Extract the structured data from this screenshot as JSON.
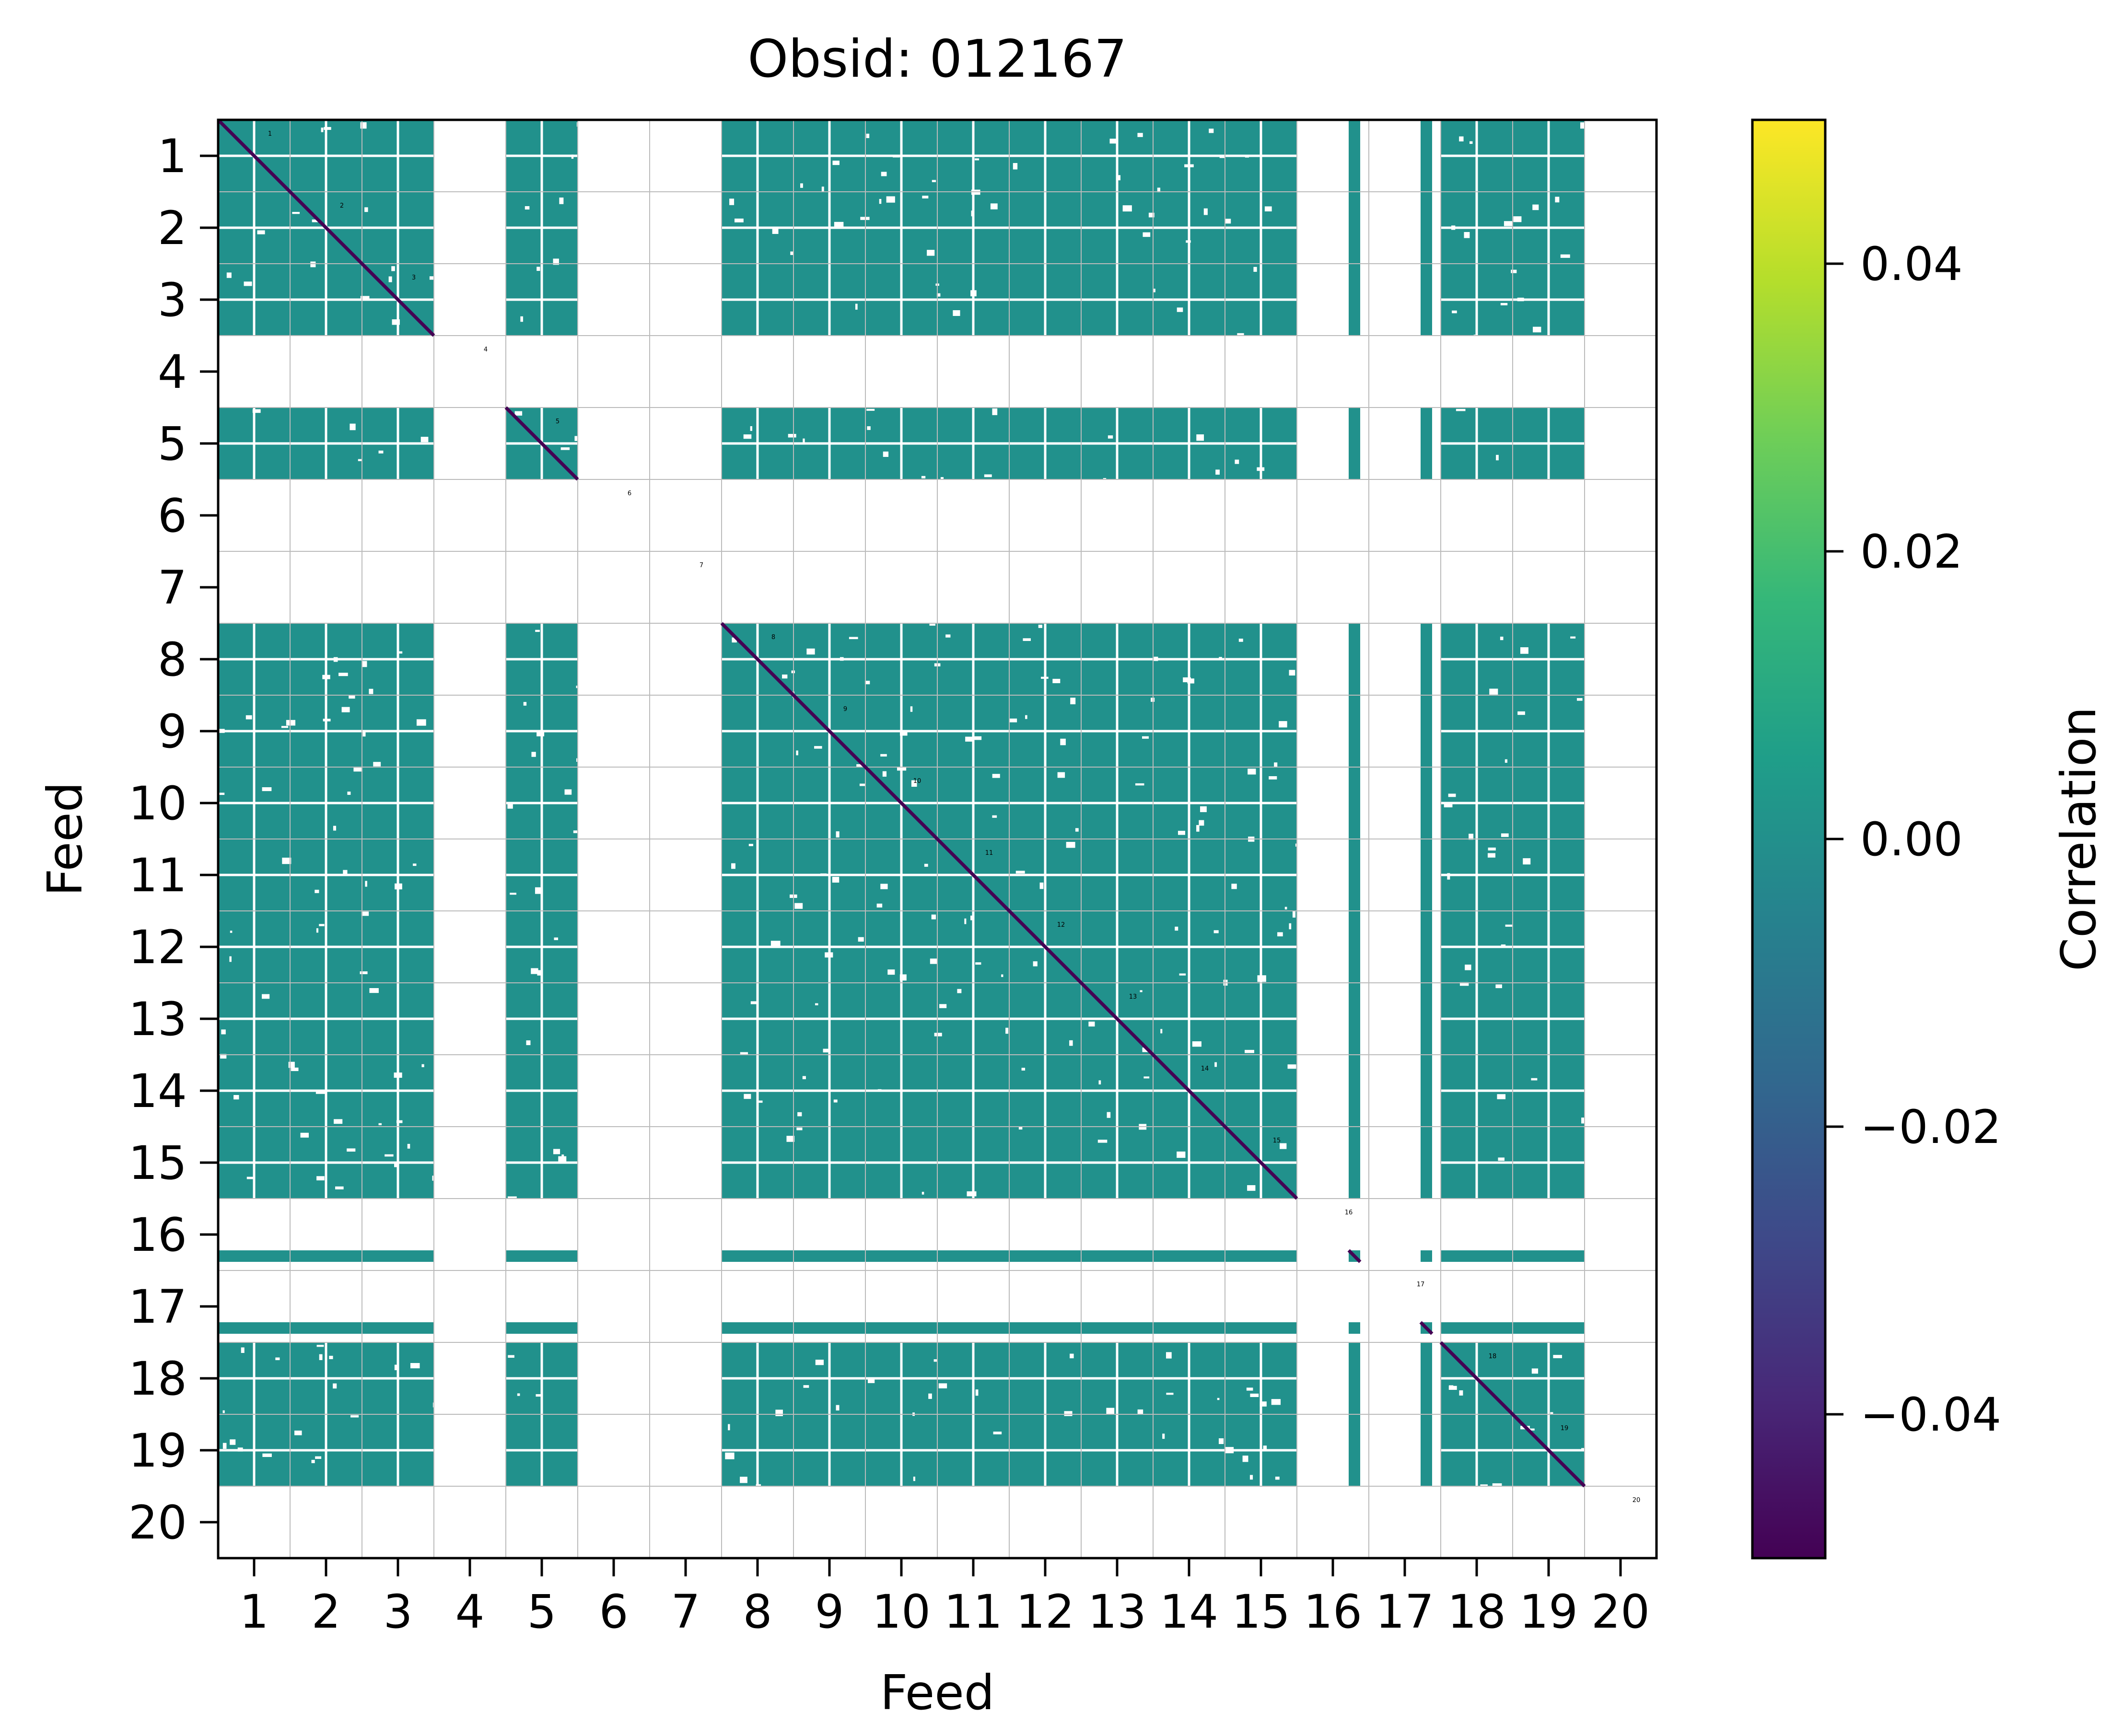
{
  "chart_data": {
    "type": "heatmap",
    "title": "Obsid: 012167",
    "xlabel": "Feed",
    "ylabel": "Feed",
    "feeds": [
      "1",
      "2",
      "3",
      "4",
      "5",
      "6",
      "7",
      "8",
      "9",
      "10",
      "11",
      "12",
      "13",
      "14",
      "15",
      "16",
      "17",
      "18",
      "19",
      "20"
    ],
    "active_feeds": [
      1,
      2,
      3,
      5,
      8,
      9,
      10,
      11,
      12,
      13,
      14,
      15,
      16,
      17,
      18,
      19
    ],
    "sparse_feeds": [
      16,
      17
    ],
    "cell_value": 0.0,
    "diagonal_value": -0.05,
    "masked_feeds": [
      4,
      6,
      7,
      20
    ],
    "colorbar": {
      "label": "Correlation",
      "colormap": "viridis",
      "range": [
        -0.05,
        0.05
      ],
      "ticks": [
        0.04,
        0.02,
        0.0,
        -0.02,
        -0.04
      ],
      "tick_labels": [
        "0.04",
        "0.02",
        "0.00",
        "−0.02",
        "−0.04"
      ]
    },
    "colors": {
      "cell": "#21918c",
      "diagonal": "#440154",
      "grid": "#bbbbbb",
      "colorbar_stops": [
        "#440154",
        "#482878",
        "#3e4989",
        "#31688e",
        "#26828e",
        "#1f9e89",
        "#35b779",
        "#6ece58",
        "#b5de2b",
        "#fde725"
      ]
    }
  }
}
